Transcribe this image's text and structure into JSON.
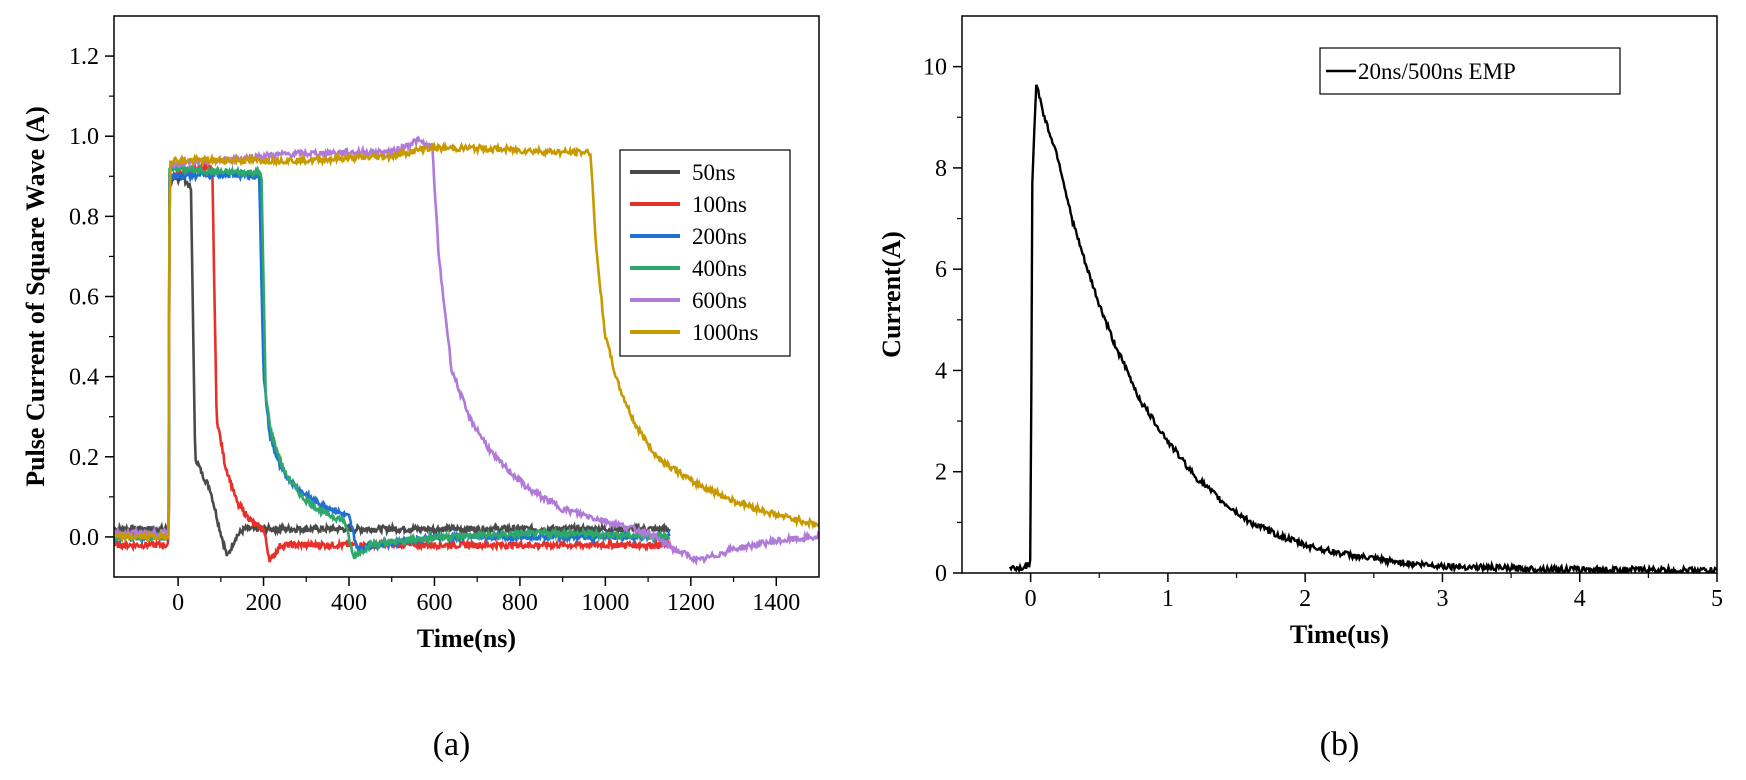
{
  "chart_data": [
    {
      "id": "a",
      "type": "line",
      "panel_label": "(a)",
      "title": "",
      "xlabel": "Time(ns)",
      "ylabel": "Pulse Current of Square Wave  (A)",
      "xlim": [
        -150,
        1500
      ],
      "ylim": [
        -0.1,
        1.3
      ],
      "x_ticks": [
        0,
        200,
        400,
        600,
        800,
        1000,
        1200,
        1400
      ],
      "y_ticks": [
        0.0,
        0.2,
        0.4,
        0.6,
        0.8,
        1.0,
        1.2
      ],
      "y_tick_labels": [
        "0.0",
        "0.2",
        "0.4",
        "0.6",
        "0.8",
        "1.0",
        "1.2"
      ],
      "grid": false,
      "legend_position": "right",
      "series": [
        {
          "name": "50ns",
          "color": "#4a4a4a",
          "points": [
            [
              -150,
              0.02
            ],
            [
              -22,
              0.02
            ],
            [
              -20,
              0.88
            ],
            [
              10,
              0.9
            ],
            [
              30,
              0.87
            ],
            [
              40,
              0.2
            ],
            [
              55,
              0.16
            ],
            [
              75,
              0.12
            ],
            [
              95,
              0.03
            ],
            [
              115,
              -0.05
            ],
            [
              135,
              0.0
            ],
            [
              155,
              0.02
            ],
            [
              200,
              0.02
            ],
            [
              600,
              0.02
            ],
            [
              1000,
              0.02
            ],
            [
              1150,
              0.02
            ]
          ]
        },
        {
          "name": "100ns",
          "color": "#e8302a",
          "points": [
            [
              -150,
              -0.02
            ],
            [
              -22,
              -0.02
            ],
            [
              -20,
              0.9
            ],
            [
              40,
              0.92
            ],
            [
              80,
              0.92
            ],
            [
              90,
              0.3
            ],
            [
              110,
              0.18
            ],
            [
              140,
              0.08
            ],
            [
              180,
              0.03
            ],
            [
              200,
              0.02
            ],
            [
              215,
              -0.06
            ],
            [
              240,
              -0.02
            ],
            [
              300,
              -0.02
            ],
            [
              600,
              -0.02
            ],
            [
              900,
              -0.02
            ],
            [
              1150,
              -0.02
            ]
          ]
        },
        {
          "name": "200ns",
          "color": "#1f6fd6",
          "points": [
            [
              -150,
              0.0
            ],
            [
              -22,
              0.0
            ],
            [
              -20,
              0.9
            ],
            [
              100,
              0.905
            ],
            [
              190,
              0.9
            ],
            [
              200,
              0.4
            ],
            [
              215,
              0.25
            ],
            [
              240,
              0.17
            ],
            [
              280,
              0.12
            ],
            [
              320,
              0.09
            ],
            [
              360,
              0.07
            ],
            [
              400,
              0.05
            ],
            [
              420,
              -0.03
            ],
            [
              460,
              -0.02
            ],
            [
              600,
              0.0
            ],
            [
              900,
              0.0
            ],
            [
              1150,
              0.0
            ]
          ]
        },
        {
          "name": "400ns",
          "color": "#2ea86a",
          "points": [
            [
              -150,
              0.0
            ],
            [
              -22,
              0.0
            ],
            [
              -20,
              0.92
            ],
            [
              100,
              0.91
            ],
            [
              195,
              0.91
            ],
            [
              205,
              0.35
            ],
            [
              220,
              0.25
            ],
            [
              250,
              0.16
            ],
            [
              290,
              0.1
            ],
            [
              340,
              0.06
            ],
            [
              390,
              0.04
            ],
            [
              410,
              -0.05
            ],
            [
              450,
              -0.02
            ],
            [
              600,
              0.0
            ],
            [
              900,
              0.01
            ],
            [
              1150,
              0.0
            ]
          ]
        },
        {
          "name": "600ns",
          "color": "#b07ad8",
          "points": [
            [
              -150,
              0.01
            ],
            [
              -22,
              0.01
            ],
            [
              -20,
              0.93
            ],
            [
              100,
              0.94
            ],
            [
              250,
              0.955
            ],
            [
              400,
              0.96
            ],
            [
              500,
              0.96
            ],
            [
              560,
              0.99
            ],
            [
              595,
              0.97
            ],
            [
              610,
              0.7
            ],
            [
              640,
              0.42
            ],
            [
              680,
              0.3
            ],
            [
              740,
              0.2
            ],
            [
              820,
              0.12
            ],
            [
              900,
              0.07
            ],
            [
              1000,
              0.04
            ],
            [
              1100,
              0.01
            ],
            [
              1160,
              -0.03
            ],
            [
              1220,
              -0.06
            ],
            [
              1300,
              -0.03
            ],
            [
              1400,
              -0.01
            ],
            [
              1500,
              0.0
            ]
          ]
        },
        {
          "name": "1000ns",
          "color": "#c99a00",
          "points": [
            [
              -150,
              0.0
            ],
            [
              -22,
              0.0
            ],
            [
              -20,
              0.94
            ],
            [
              100,
              0.94
            ],
            [
              300,
              0.94
            ],
            [
              500,
              0.95
            ],
            [
              580,
              0.97
            ],
            [
              700,
              0.97
            ],
            [
              800,
              0.965
            ],
            [
              900,
              0.96
            ],
            [
              965,
              0.96
            ],
            [
              980,
              0.7
            ],
            [
              1000,
              0.5
            ],
            [
              1030,
              0.38
            ],
            [
              1070,
              0.28
            ],
            [
              1120,
              0.2
            ],
            [
              1200,
              0.14
            ],
            [
              1300,
              0.09
            ],
            [
              1400,
              0.055
            ],
            [
              1500,
              0.03
            ]
          ]
        }
      ]
    },
    {
      "id": "b",
      "type": "line",
      "panel_label": "(b)",
      "title": "",
      "xlabel": "Time(us)",
      "ylabel": "Current(A)",
      "xlim": [
        -0.5,
        5
      ],
      "ylim": [
        0,
        11
      ],
      "x_ticks": [
        0,
        1,
        2,
        3,
        4,
        5
      ],
      "y_ticks": [
        0,
        2,
        4,
        6,
        8,
        10
      ],
      "grid": false,
      "legend_position": "top-right",
      "series": [
        {
          "name": "20ns/500ns EMP",
          "color": "#000000",
          "points": [
            [
              -0.15,
              0.1
            ],
            [
              -0.05,
              0.1
            ],
            [
              0.0,
              0.2
            ],
            [
              0.01,
              7.5
            ],
            [
              0.04,
              9.7
            ],
            [
              0.1,
              9.0
            ],
            [
              0.2,
              8.2
            ],
            [
              0.3,
              7.0
            ],
            [
              0.4,
              6.1
            ],
            [
              0.5,
              5.3
            ],
            [
              0.6,
              4.6
            ],
            [
              0.7,
              4.0
            ],
            [
              0.8,
              3.4
            ],
            [
              0.9,
              3.0
            ],
            [
              1.0,
              2.6
            ],
            [
              1.2,
              1.9
            ],
            [
              1.4,
              1.4
            ],
            [
              1.6,
              1.0
            ],
            [
              1.8,
              0.75
            ],
            [
              2.0,
              0.55
            ],
            [
              2.2,
              0.42
            ],
            [
              2.4,
              0.32
            ],
            [
              2.6,
              0.24
            ],
            [
              2.8,
              0.18
            ],
            [
              3.0,
              0.14
            ],
            [
              3.5,
              0.09
            ],
            [
              4.0,
              0.07
            ],
            [
              4.5,
              0.06
            ],
            [
              5.0,
              0.05
            ]
          ]
        }
      ]
    }
  ]
}
